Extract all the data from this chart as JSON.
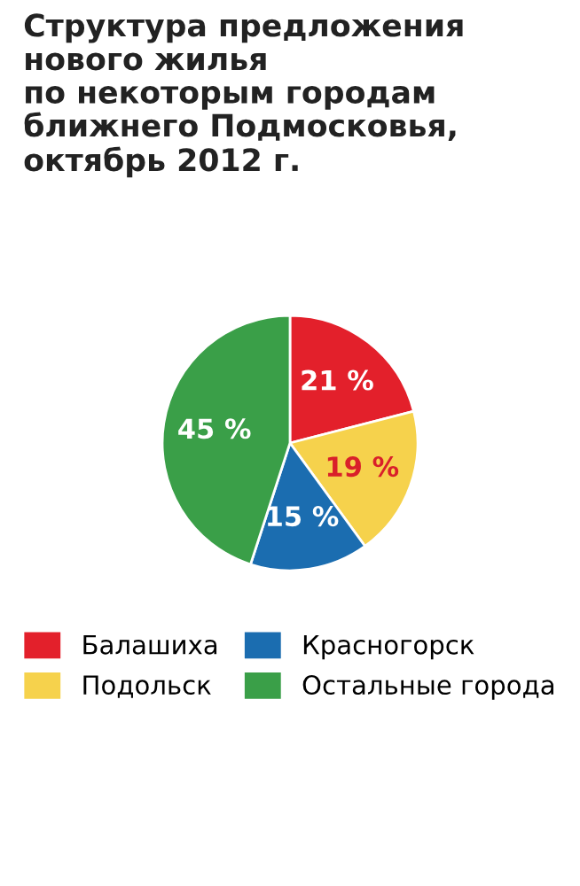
{
  "chart_data": {
    "type": "pie",
    "title": "Структура предложения\nнового жилья\nпо некоторым городам\nближнего Подмосковья,\nоктябрь 2012 г.",
    "categories": [
      "Балашиха",
      "Подольск",
      "Красногорск",
      "Остальные города"
    ],
    "values": [
      21,
      19,
      15,
      45
    ],
    "colors": [
      "#e3202b",
      "#f6d24c",
      "#1b6db0",
      "#3a9f48"
    ],
    "value_labels": [
      "21 %",
      "19 %",
      "15 %",
      "45 %"
    ],
    "legend": "bottom"
  }
}
